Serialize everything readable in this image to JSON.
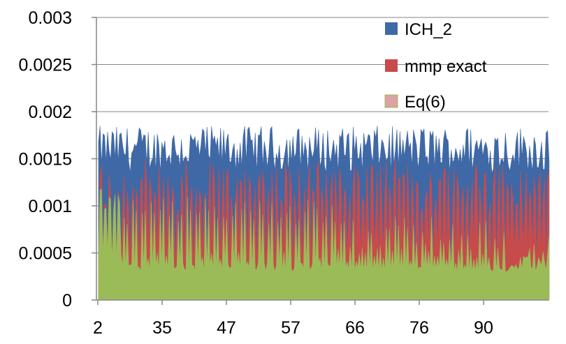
{
  "chart_data": {
    "type": "area",
    "title": "",
    "xlabel": "",
    "ylabel": "",
    "ylim": [
      0,
      0.003
    ],
    "y_ticks": [
      "0",
      "0.0005",
      "0.001",
      "0.0015",
      "0.002",
      "0.0025",
      "0.003"
    ],
    "y_tick_values": [
      0,
      0.0005,
      0.001,
      0.0015,
      0.002,
      0.0025,
      0.003
    ],
    "x_ticks": [
      "2",
      "35",
      "47",
      "57",
      "66",
      "76",
      "90"
    ],
    "x_tick_positions": [
      2,
      35,
      47,
      57,
      66,
      76,
      90
    ],
    "x_range": [
      2,
      100
    ],
    "grid": "horizontal",
    "legend_placement": "top-right",
    "series": [
      {
        "name": "ICH_2",
        "color": "#3f68a6",
        "description_stat": "dense spikes",
        "typical_low": 0.00135,
        "typical_high": 0.00185
      },
      {
        "name": "mmp exact",
        "color": "#c84b4b",
        "typical_low": 0.00035,
        "typical_high": 0.0015
      },
      {
        "name": "Eq(6)",
        "color": "#9bbb59",
        "legend_color": "#dba3a3",
        "typical_low": 0.0003,
        "typical_high": 0.00125
      }
    ]
  }
}
